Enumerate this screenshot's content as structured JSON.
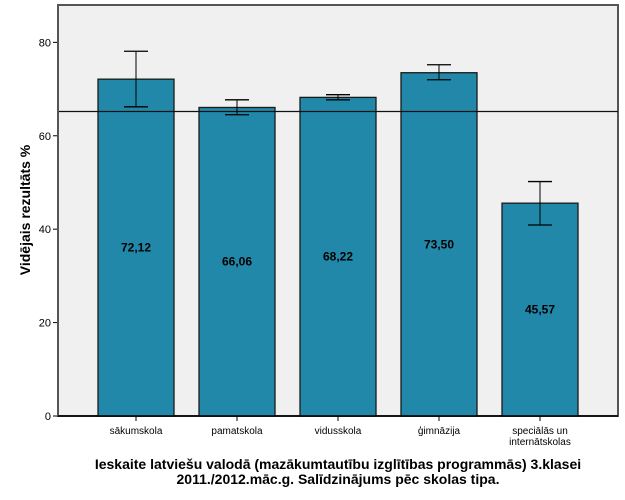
{
  "chart_data": {
    "type": "bar",
    "title": "Ieskaite latviešu valodā (mazākumtautību izglītības programmās) 3.klasei",
    "subtitle": "2011./2012.māc.g. Salīdzinājums pēc skolas tipa.",
    "xlabel": "",
    "ylabel": "Vidējais rezultāts %",
    "ylim": [
      0,
      88
    ],
    "yticks": [
      0,
      20,
      40,
      60,
      80
    ],
    "categories": [
      [
        "sākumskola"
      ],
      [
        "pamatskola"
      ],
      [
        "vidusskola"
      ],
      [
        "ģimnāzija"
      ],
      [
        "speciālās un",
        "internātskolas"
      ]
    ],
    "values": [
      72.12,
      66.06,
      68.22,
      73.5,
      45.57
    ],
    "value_labels": [
      "72,12",
      "66,06",
      "68,22",
      "73,50",
      "45,57"
    ],
    "error_bars": [
      {
        "lower": 66.2,
        "upper": 78.1
      },
      {
        "lower": 64.5,
        "upper": 67.7
      },
      {
        "lower": 67.7,
        "upper": 68.8
      },
      {
        "lower": 72.0,
        "upper": 75.2
      },
      {
        "lower": 40.9,
        "upper": 50.2
      }
    ],
    "reference_line": 65.2,
    "grid": false,
    "colors": {
      "bar": "#2288aa",
      "plot_bg": "#f0f0f0",
      "axis": "#555555"
    }
  }
}
